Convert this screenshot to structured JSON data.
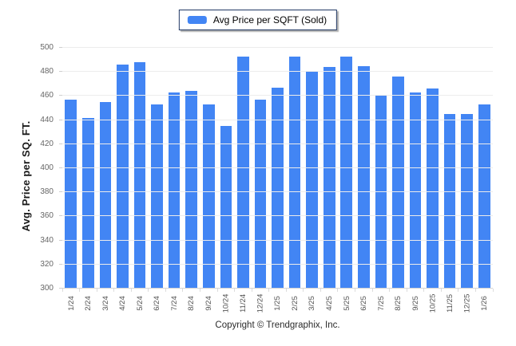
{
  "legend": {
    "label": "Avg Price per SQFT (Sold)"
  },
  "footer": {
    "copyright": "Copyright © Trendgraphix, Inc."
  },
  "colors": {
    "bar": "#4285f4",
    "grid": "#ececec",
    "legend_border": "#203864"
  },
  "chart_data": {
    "type": "bar",
    "title": "",
    "series_name": "Avg Price per SQFT (Sold)",
    "categories": [
      "1/24",
      "2/24",
      "3/24",
      "4/24",
      "5/24",
      "6/24",
      "7/24",
      "8/24",
      "9/24",
      "10/24",
      "11/24",
      "12/24",
      "1/25",
      "2/25",
      "3/25",
      "4/25",
      "5/25",
      "6/25",
      "7/25",
      "8/25",
      "9/25",
      "10/25",
      "11/25",
      "12/25",
      "1/26"
    ],
    "values": [
      457,
      442,
      455,
      486,
      488,
      453,
      463,
      464,
      453,
      435,
      493,
      457,
      467,
      493,
      481,
      484,
      493,
      485,
      461,
      476,
      463,
      466,
      445,
      445,
      453
    ],
    "xlabel": "",
    "ylabel": "Avg. Price per SQ. FT.",
    "ylim": [
      300,
      500
    ],
    "ytick_step": 20,
    "grid": true,
    "legend_position": "top-center"
  }
}
